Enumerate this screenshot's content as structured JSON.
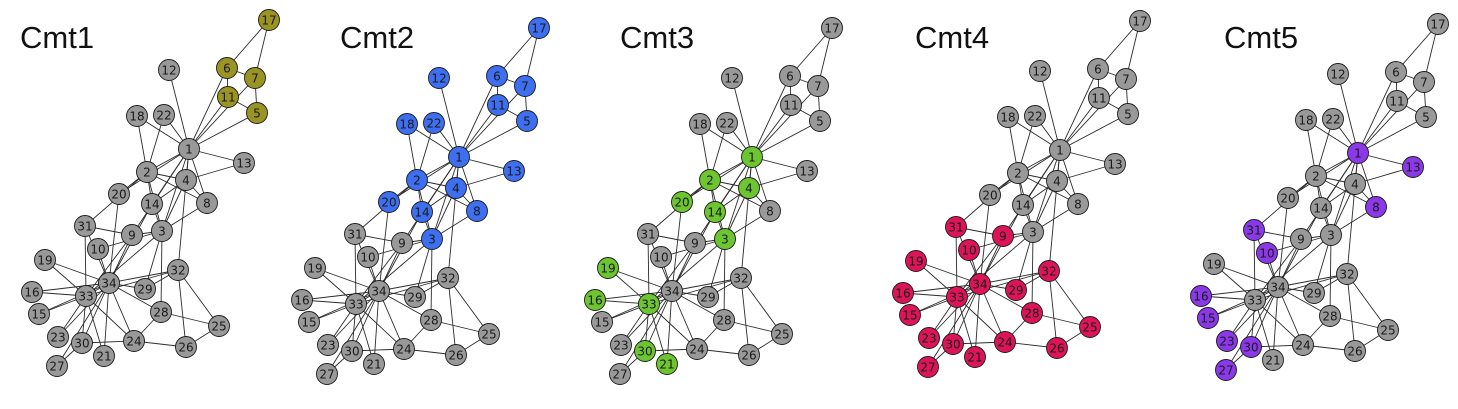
{
  "figure": {
    "node_ids": [
      "1",
      "2",
      "3",
      "4",
      "5",
      "6",
      "7",
      "8",
      "9",
      "10",
      "11",
      "12",
      "13",
      "14",
      "15",
      "16",
      "17",
      "18",
      "19",
      "20",
      "21",
      "22",
      "23",
      "24",
      "25",
      "26",
      "27",
      "28",
      "29",
      "30",
      "31",
      "32",
      "33",
      "34"
    ],
    "edges": [
      [
        1,
        2
      ],
      [
        1,
        3
      ],
      [
        1,
        4
      ],
      [
        1,
        5
      ],
      [
        1,
        6
      ],
      [
        1,
        7
      ],
      [
        1,
        8
      ],
      [
        1,
        9
      ],
      [
        1,
        11
      ],
      [
        1,
        12
      ],
      [
        1,
        13
      ],
      [
        1,
        14
      ],
      [
        1,
        18
      ],
      [
        1,
        20
      ],
      [
        1,
        22
      ],
      [
        1,
        32
      ],
      [
        2,
        3
      ],
      [
        2,
        4
      ],
      [
        2,
        8
      ],
      [
        2,
        14
      ],
      [
        2,
        18
      ],
      [
        2,
        20
      ],
      [
        2,
        22
      ],
      [
        2,
        31
      ],
      [
        3,
        4
      ],
      [
        3,
        8
      ],
      [
        3,
        9
      ],
      [
        3,
        10
      ],
      [
        3,
        14
      ],
      [
        3,
        28
      ],
      [
        3,
        29
      ],
      [
        3,
        33
      ],
      [
        4,
        8
      ],
      [
        4,
        13
      ],
      [
        4,
        14
      ],
      [
        5,
        7
      ],
      [
        5,
        11
      ],
      [
        6,
        7
      ],
      [
        6,
        11
      ],
      [
        6,
        17
      ],
      [
        7,
        17
      ],
      [
        9,
        31
      ],
      [
        9,
        33
      ],
      [
        9,
        34
      ],
      [
        10,
        34
      ],
      [
        14,
        34
      ],
      [
        15,
        33
      ],
      [
        15,
        34
      ],
      [
        16,
        33
      ],
      [
        16,
        34
      ],
      [
        19,
        33
      ],
      [
        19,
        34
      ],
      [
        20,
        34
      ],
      [
        21,
        33
      ],
      [
        21,
        34
      ],
      [
        23,
        33
      ],
      [
        23,
        34
      ],
      [
        24,
        26
      ],
      [
        24,
        28
      ],
      [
        24,
        30
      ],
      [
        24,
        33
      ],
      [
        24,
        34
      ],
      [
        25,
        26
      ],
      [
        25,
        28
      ],
      [
        25,
        32
      ],
      [
        26,
        32
      ],
      [
        27,
        30
      ],
      [
        27,
        34
      ],
      [
        28,
        34
      ],
      [
        29,
        32
      ],
      [
        29,
        34
      ],
      [
        30,
        33
      ],
      [
        30,
        34
      ],
      [
        31,
        33
      ],
      [
        31,
        34
      ],
      [
        32,
        33
      ],
      [
        32,
        34
      ],
      [
        33,
        34
      ]
    ],
    "default_node_color": "#999999",
    "panels": [
      {
        "title": "Cmt1",
        "color": "#9a9424",
        "nodes": [
          5,
          6,
          7,
          11,
          17
        ]
      },
      {
        "title": "Cmt2",
        "color": "#3d6ff0",
        "nodes": [
          1,
          2,
          3,
          4,
          5,
          6,
          7,
          8,
          11,
          12,
          13,
          14,
          17,
          18,
          20,
          22
        ]
      },
      {
        "title": "Cmt3",
        "color": "#6dc531",
        "nodes": [
          1,
          2,
          3,
          4,
          14,
          16,
          19,
          20,
          21,
          30,
          33
        ]
      },
      {
        "title": "Cmt4",
        "color": "#dd1558",
        "nodes": [
          9,
          10,
          15,
          16,
          19,
          21,
          23,
          24,
          25,
          26,
          27,
          28,
          29,
          30,
          31,
          32,
          33,
          34
        ]
      },
      {
        "title": "Cmt5",
        "color": "#8a38e8",
        "nodes": [
          1,
          8,
          10,
          13,
          15,
          16,
          23,
          27,
          30,
          31
        ]
      }
    ]
  }
}
